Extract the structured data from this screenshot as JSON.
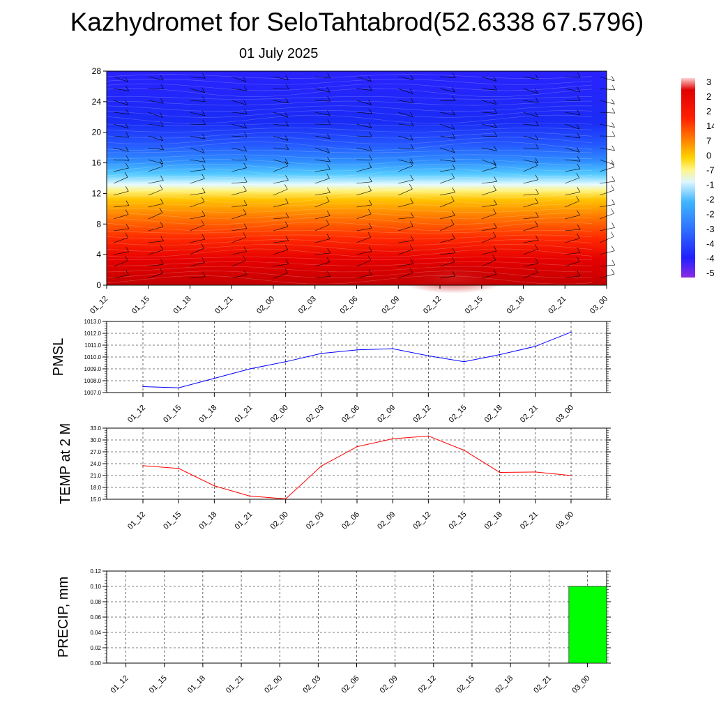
{
  "header": {
    "title": "Kazhydromet for SeloTahtabrod(52.6338 67.5796)",
    "subtitle": "01 July 2025"
  },
  "colors": {
    "pmsl_line": "#0000ff",
    "temp_line": "#ff0000",
    "precip_bar": "#00ff00",
    "colormap": [
      "#8b2be2",
      "#3a10ff",
      "#1f3cff",
      "#2f7fff",
      "#3fb6ff",
      "#bfefff",
      "#fff58a",
      "#ffd200",
      "#ff9a00",
      "#ff5a00",
      "#ff1e00",
      "#e00000",
      "#c80000",
      "#ffd0d0"
    ]
  },
  "chart_data": [
    {
      "id": "cross-section",
      "type": "heatmap",
      "title": "",
      "xlabel": "",
      "ylabel": "",
      "x": [
        "01_12",
        "01_15",
        "01_18",
        "01_21",
        "02_00",
        "02_03",
        "02_06",
        "02_09",
        "02_12",
        "02_15",
        "02_18",
        "02_21",
        "03_00"
      ],
      "y_ticks": [
        "0",
        "4",
        "8",
        "12",
        "16",
        "20",
        "24",
        "28"
      ],
      "ylim": [
        0,
        28
      ],
      "colorbar_labels": [
        "3",
        "2",
        "2",
        "14",
        "7",
        "0",
        "-7",
        "-1",
        "-2",
        "-2",
        "-3",
        "-4",
        "-4",
        "-5"
      ],
      "wind_barbs": true
    },
    {
      "id": "pmsl",
      "type": "line",
      "ylabel": "PMSL",
      "x": [
        "01_12",
        "01_15",
        "01_18",
        "01_21",
        "02_00",
        "02_03",
        "02_06",
        "02_09",
        "02_12",
        "02_15",
        "02_18",
        "02_21",
        "03_00"
      ],
      "values": [
        1007.5,
        1007.4,
        1008.2,
        1009.0,
        1009.6,
        1010.3,
        1010.6,
        1010.7,
        1010.1,
        1009.6,
        1010.2,
        1010.9,
        1012.1
      ],
      "ylim": [
        1007.0,
        1013.0
      ],
      "y_ticks": [
        "1007.0",
        "1008.0",
        "1009.0",
        "1010.0",
        "1011.0",
        "1012.0",
        "1013.0"
      ],
      "grid": true
    },
    {
      "id": "temp",
      "type": "line",
      "ylabel": "TEMP at 2 M",
      "x": [
        "01_12",
        "01_15",
        "01_18",
        "01_21",
        "02_00",
        "02_03",
        "02_06",
        "02_09",
        "02_12",
        "02_15",
        "02_18",
        "02_21",
        "03_00"
      ],
      "values": [
        23.5,
        22.8,
        18.4,
        15.8,
        15.1,
        23.4,
        28.3,
        30.3,
        31.0,
        27.4,
        21.8,
        21.9,
        21.0
      ],
      "ylim": [
        15.0,
        33.0
      ],
      "y_ticks": [
        "15.0",
        "18.0",
        "21.0",
        "24.0",
        "27.0",
        "30.0",
        "33.0"
      ],
      "grid": true
    },
    {
      "id": "precip",
      "type": "bar",
      "ylabel": "PRECIP, mm",
      "categories": [
        "01_12",
        "01_15",
        "01_18",
        "01_21",
        "02_00",
        "02_03",
        "02_06",
        "02_09",
        "02_12",
        "02_15",
        "02_18",
        "02_21",
        "03_00"
      ],
      "values": [
        0,
        0,
        0,
        0,
        0,
        0,
        0,
        0,
        0,
        0,
        0,
        0,
        0.1
      ],
      "ylim": [
        0,
        0.12
      ],
      "y_ticks": [
        "0.00",
        "0.02",
        "0.04",
        "0.06",
        "0.08",
        "0.10",
        "0.12"
      ],
      "grid": true
    }
  ]
}
